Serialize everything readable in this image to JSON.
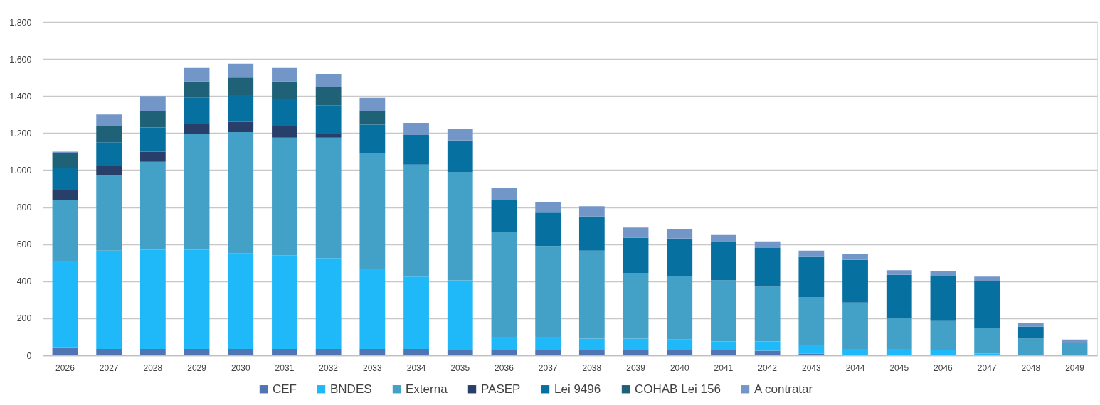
{
  "chart_data": {
    "type": "bar",
    "stacked": true,
    "categories": [
      "2026",
      "2027",
      "2028",
      "2029",
      "2030",
      "2031",
      "2032",
      "2033",
      "2034",
      "2035",
      "2036",
      "2037",
      "2038",
      "2039",
      "2040",
      "2041",
      "2042",
      "2043",
      "2044",
      "2045",
      "2046",
      "2047",
      "2048",
      "2049"
    ],
    "series": [
      {
        "name": "CEF",
        "color": "#4f75b2",
        "values": [
          40,
          35,
          35,
          35,
          35,
          35,
          35,
          35,
          35,
          30,
          30,
          30,
          30,
          30,
          30,
          30,
          25,
          10,
          null,
          null,
          null,
          null,
          null,
          null
        ]
      },
      {
        "name": "BNDES",
        "color": "#1fb8f8",
        "values": [
          470,
          530,
          535,
          535,
          515,
          505,
          490,
          430,
          390,
          375,
          70,
          70,
          60,
          60,
          55,
          45,
          50,
          45,
          35,
          35,
          30,
          10,
          null,
          null
        ]
      },
      {
        "name": "Externa",
        "color": "#43a0c6",
        "values": [
          330,
          405,
          475,
          625,
          655,
          635,
          650,
          625,
          605,
          585,
          565,
          490,
          475,
          355,
          345,
          330,
          295,
          260,
          250,
          165,
          155,
          140,
          90,
          65
        ]
      },
      {
        "name": "PASEP",
        "color": "#283f6a",
        "values": [
          50,
          55,
          55,
          55,
          55,
          65,
          20,
          null,
          null,
          null,
          null,
          null,
          null,
          null,
          null,
          null,
          null,
          null,
          null,
          null,
          null,
          null,
          null,
          null
        ]
      },
      {
        "name": "Lei 9496",
        "color": "#0670a0",
        "values": [
          120,
          125,
          130,
          140,
          145,
          145,
          155,
          155,
          160,
          170,
          175,
          180,
          185,
          190,
          200,
          205,
          210,
          220,
          230,
          235,
          245,
          250,
          65,
          null
        ]
      },
      {
        "name": "COHAB Lei 156",
        "color": "#1f6278",
        "values": [
          80,
          90,
          90,
          90,
          95,
          95,
          100,
          75,
          null,
          null,
          null,
          null,
          null,
          null,
          null,
          null,
          null,
          null,
          null,
          null,
          null,
          null,
          null,
          null
        ]
      },
      {
        "name": "A contratar",
        "color": "#7396c8",
        "values": [
          10,
          60,
          80,
          75,
          75,
          75,
          70,
          70,
          65,
          60,
          65,
          55,
          55,
          55,
          50,
          40,
          35,
          30,
          30,
          25,
          25,
          25,
          20,
          20
        ]
      }
    ],
    "ylim": [
      0,
      1800
    ],
    "yticks": [
      0,
      200,
      400,
      600,
      800,
      {
        "value": 1000,
        "label": "1.000"
      },
      {
        "value": 1200,
        "label": "1.200"
      },
      {
        "value": 1400,
        "label": "1.400"
      },
      {
        "value": 1600,
        "label": "1.600"
      },
      {
        "value": 1800,
        "label": "1.800"
      }
    ],
    "grid": "y",
    "legend": "bottom"
  }
}
